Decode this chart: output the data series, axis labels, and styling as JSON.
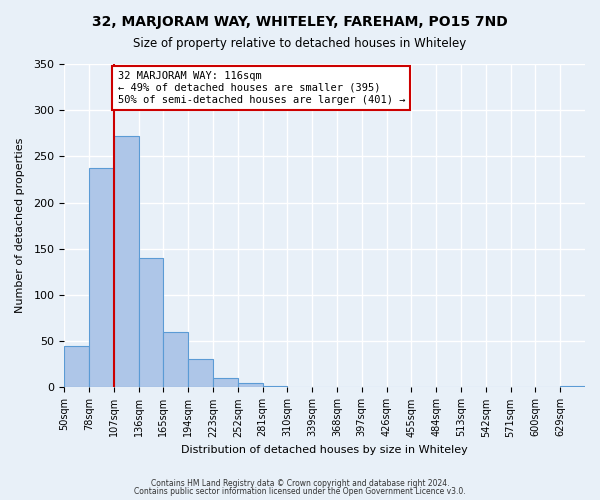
{
  "title": "32, MARJORAM WAY, WHITELEY, FAREHAM, PO15 7ND",
  "subtitle": "Size of property relative to detached houses in Whiteley",
  "xlabel": "Distribution of detached houses by size in Whiteley",
  "ylabel": "Number of detached properties",
  "bar_values": [
    45,
    238,
    272,
    140,
    60,
    31,
    10,
    5,
    2,
    0,
    0,
    0,
    0,
    0,
    0,
    0,
    0,
    0,
    0,
    0,
    2
  ],
  "bin_labels": [
    "50sqm",
    "78sqm",
    "107sqm",
    "136sqm",
    "165sqm",
    "194sqm",
    "223sqm",
    "252sqm",
    "281sqm",
    "310sqm",
    "339sqm",
    "368sqm",
    "397sqm",
    "426sqm",
    "455sqm",
    "484sqm",
    "513sqm",
    "542sqm",
    "571sqm",
    "600sqm",
    "629sqm"
  ],
  "bar_color": "#aec6e8",
  "bar_edge_color": "#5b9bd5",
  "vline_x": 2,
  "vline_color": "#cc0000",
  "annotation_text": "32 MARJORAM WAY: 116sqm\n← 49% of detached houses are smaller (395)\n50% of semi-detached houses are larger (401) →",
  "annotation_box_color": "#ffffff",
  "annotation_box_edge": "#cc0000",
  "ylim": [
    0,
    350
  ],
  "yticks": [
    0,
    50,
    100,
    150,
    200,
    250,
    300,
    350
  ],
  "bg_color": "#e8f0f8",
  "grid_color": "#ffffff",
  "footer_line1": "Contains HM Land Registry data © Crown copyright and database right 2024.",
  "footer_line2": "Contains public sector information licensed under the Open Government Licence v3.0."
}
